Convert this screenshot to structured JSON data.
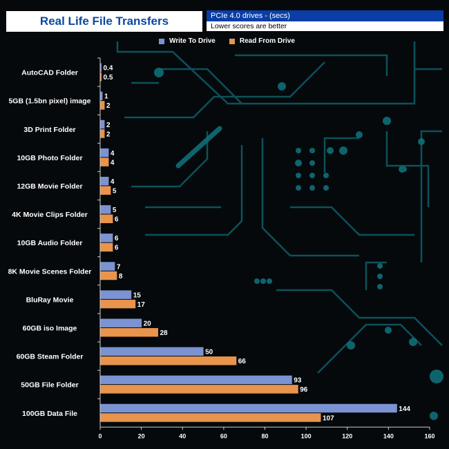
{
  "header": {
    "title": "Real Life File Transfers",
    "subtitle": "PCIe 4.0 drives - (secs)",
    "note": "Lower scores are better"
  },
  "legend": {
    "write_label": "Write To  Drive",
    "read_label": "Read From  Drive"
  },
  "colors": {
    "write": "#7b93d2",
    "read": "#e8944c",
    "axis": "#cfcfcf",
    "background": "#05090c",
    "circuit": "#0d5a63"
  },
  "chart_data": {
    "type": "bar",
    "orientation": "horizontal",
    "categories": [
      "AutoCAD Folder",
      "5GB (1.5bn pixel) image",
      "3D Print Folder",
      "10GB Photo Folder",
      "12GB Movie Folder",
      "4K Movie Clips Folder",
      "10GB Audio Folder",
      "8K Movie Scenes Folder",
      "BluRay Movie",
      "60GB iso Image",
      "60GB Steam Folder",
      "50GB File Folder",
      "100GB Data File"
    ],
    "series": [
      {
        "name": "Write To  Drive",
        "values": [
          0.4,
          1,
          2,
          4,
          4,
          5,
          6,
          7,
          15,
          20,
          50,
          93,
          144
        ]
      },
      {
        "name": "Read From  Drive",
        "values": [
          0.5,
          2,
          2,
          4,
          5,
          6,
          6,
          8,
          17,
          28,
          66,
          96,
          107
        ]
      }
    ],
    "xlim": [
      0,
      160
    ],
    "xticks": [
      0,
      20,
      40,
      60,
      80,
      100,
      120,
      140,
      160
    ],
    "grid": false,
    "legend_position": "top"
  }
}
